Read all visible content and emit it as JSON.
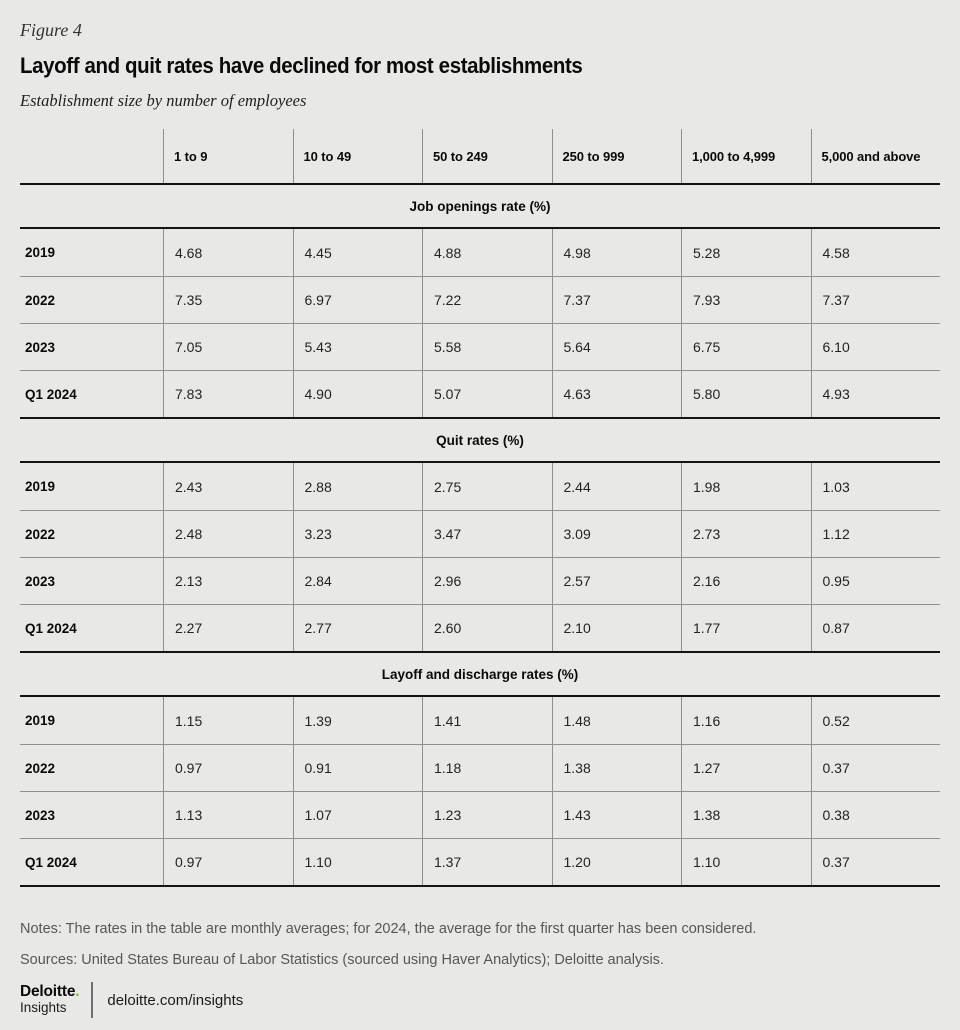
{
  "page": {
    "figure_label": "Figure 4",
    "title": "Layoff and quit rates have declined for most establishments",
    "subtitle": "Establishment size by number of employees",
    "notes": "Notes: The rates in the table are monthly averages; for 2024, the average for the first quarter has been considered.",
    "sources": "Sources: United States Bureau of Labor Statistics (sourced using Haver Analytics); Deloitte analysis.",
    "footer": {
      "brand_name": "Deloitte",
      "brand_dot": ".",
      "brand_sub": "Insights",
      "link": "deloitte.com/insights"
    }
  },
  "colors": {
    "background": "#e8e8e6",
    "heavy_rule": "#141414",
    "light_rule": "#8f8f8f",
    "text_secondary": "#55575a",
    "brand_green": "#86bc25"
  },
  "chart_data": {
    "type": "table",
    "title": "Layoff and quit rates have declined for most establishments",
    "subtitle": "Establishment size by number of employees",
    "columns": [
      "1 to 9",
      "10 to 49",
      "50 to 249",
      "250 to 999",
      "1,000 to 4,999",
      "5,000 and above"
    ],
    "sections": [
      {
        "label": "Job openings rate (%)",
        "rows": [
          {
            "label": "2019",
            "values": [
              "4.68",
              "4.45",
              "4.88",
              "4.98",
              "5.28",
              "4.58"
            ]
          },
          {
            "label": "2022",
            "values": [
              "7.35",
              "6.97",
              "7.22",
              "7.37",
              "7.93",
              "7.37"
            ]
          },
          {
            "label": "2023",
            "values": [
              "7.05",
              "5.43",
              "5.58",
              "5.64",
              "6.75",
              "6.10"
            ]
          },
          {
            "label": "Q1 2024",
            "values": [
              "7.83",
              "4.90",
              "5.07",
              "4.63",
              "5.80",
              "4.93"
            ]
          }
        ]
      },
      {
        "label": "Quit rates (%)",
        "rows": [
          {
            "label": "2019",
            "values": [
              "2.43",
              "2.88",
              "2.75",
              "2.44",
              "1.98",
              "1.03"
            ]
          },
          {
            "label": "2022",
            "values": [
              "2.48",
              "3.23",
              "3.47",
              "3.09",
              "2.73",
              "1.12"
            ]
          },
          {
            "label": "2023",
            "values": [
              "2.13",
              "2.84",
              "2.96",
              "2.57",
              "2.16",
              "0.95"
            ]
          },
          {
            "label": "Q1 2024",
            "values": [
              "2.27",
              "2.77",
              "2.60",
              "2.10",
              "1.77",
              "0.87"
            ]
          }
        ]
      },
      {
        "label": "Layoff and discharge rates (%)",
        "rows": [
          {
            "label": "2019",
            "values": [
              "1.15",
              "1.39",
              "1.41",
              "1.48",
              "1.16",
              "0.52"
            ]
          },
          {
            "label": "2022",
            "values": [
              "0.97",
              "0.91",
              "1.18",
              "1.38",
              "1.27",
              "0.37"
            ]
          },
          {
            "label": "2023",
            "values": [
              "1.13",
              "1.07",
              "1.23",
              "1.43",
              "1.38",
              "0.38"
            ]
          },
          {
            "label": "Q1 2024",
            "values": [
              "0.97",
              "1.10",
              "1.37",
              "1.20",
              "1.10",
              "0.37"
            ]
          }
        ]
      }
    ]
  }
}
